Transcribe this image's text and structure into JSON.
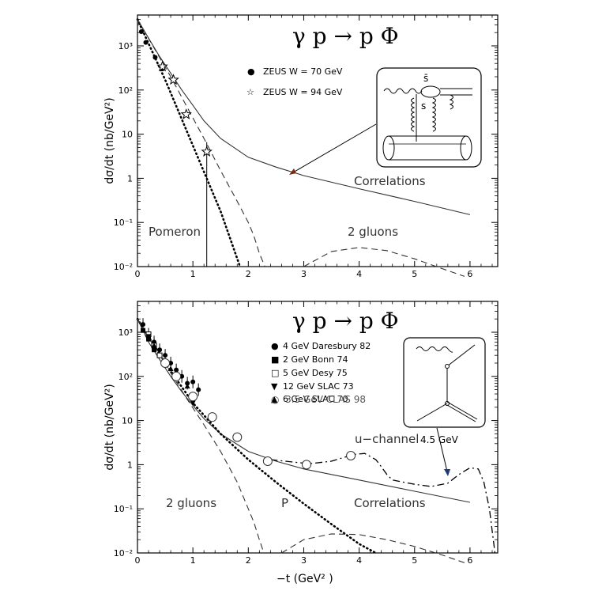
{
  "chart_data": [
    {
      "type": "line",
      "title": "γ p → p Φ",
      "xlabel": "",
      "ylabel": "dσ/dt (nb/GeV²)",
      "xlim": [
        0,
        6.5
      ],
      "ylim": [
        0.01,
        5000
      ],
      "yscale": "log",
      "xticks": [
        "0",
        "1",
        "2",
        "3",
        "4",
        "5",
        "6"
      ],
      "yticks": [
        "10⁻²",
        "10⁻¹",
        "1",
        "10",
        "10²",
        "10³"
      ],
      "series": [
        {
          "name": "Correlations",
          "style": "solid",
          "x": [
            0,
            0.2,
            0.4,
            0.6,
            0.8,
            1.0,
            1.2,
            1.5,
            2.0,
            2.5,
            3.0,
            4.0,
            5.0,
            6.0
          ],
          "y": [
            4000,
            1500,
            570,
            240,
            100,
            45,
            20,
            8,
            3.0,
            1.8,
            1.15,
            0.58,
            0.3,
            0.15
          ]
        },
        {
          "name": "Pomeron",
          "style": "dotted",
          "x": [
            0,
            0.5,
            1.0,
            1.5,
            1.85
          ],
          "y": [
            4000,
            170,
            5.5,
            0.18,
            0.01
          ]
        },
        {
          "name": "2 gluons",
          "style": "dashed",
          "x": [
            0,
            0.3,
            0.6,
            0.9,
            1.2,
            1.5,
            1.8,
            2.0,
            2.1,
            2.2,
            2.3
          ],
          "y": [
            4000,
            900,
            200,
            40,
            8,
            1.5,
            0.3,
            0.1,
            0.05,
            0.02,
            0.01
          ]
        },
        {
          "name": "2 gluons",
          "style": "dashed",
          "x": [
            3.0,
            3.5,
            4.0,
            4.5,
            5.0,
            5.5,
            5.9
          ],
          "y": [
            0.01,
            0.022,
            0.027,
            0.023,
            0.015,
            0.009,
            0.006
          ]
        },
        {
          "name": "ZEUS W = 70 GeV",
          "style": "points-filled-circle",
          "x": [
            0.07,
            0.15,
            0.32,
            0.45
          ],
          "y": [
            2100,
            1200,
            550,
            300
          ]
        },
        {
          "name": "ZEUS W = 94 GeV",
          "style": "points-open-star",
          "x": [
            0.45,
            0.65,
            0.88,
            1.25
          ],
          "y": [
            340,
            170,
            28,
            4
          ]
        }
      ],
      "annotations": [
        "Pomeron",
        "2 gluons",
        "Correlations"
      ],
      "legend": [
        {
          "marker": "●",
          "label": "ZEUS   W = 70 GeV"
        },
        {
          "marker": "☆",
          "label": "ZEUS   W = 94 GeV"
        }
      ],
      "inset_labels": {
        "sbar": "s̄",
        "s": "s"
      }
    },
    {
      "type": "line",
      "title": "γ p → p Φ",
      "xlabel": "−t   (GeV² )",
      "ylabel": "dσ/dt (nb/GeV²)",
      "xlim": [
        0,
        6.5
      ],
      "ylim": [
        0.01,
        5000
      ],
      "yscale": "log",
      "xticks": [
        "0",
        "1",
        "2",
        "3",
        "4",
        "5",
        "6"
      ],
      "yticks": [
        "10⁻²",
        "10⁻¹",
        "1",
        "10",
        "10²",
        "10³"
      ],
      "series": [
        {
          "name": "Correlations",
          "style": "solid",
          "x": [
            0,
            0.2,
            0.4,
            0.6,
            0.8,
            1.0,
            1.2,
            1.5,
            2.0,
            2.5,
            3.0,
            4.0,
            5.0,
            6.0
          ],
          "y": [
            2000,
            600,
            240,
            100,
            45,
            22,
            11,
            5,
            2.0,
            1.2,
            0.8,
            0.45,
            0.25,
            0.14
          ]
        },
        {
          "name": "P",
          "style": "dotted",
          "x": [
            0,
            0.5,
            1.0,
            1.5,
            2.0,
            2.5,
            3.0,
            3.5,
            4.0,
            4.3
          ],
          "y": [
            2000,
            200,
            25,
            5,
            1.3,
            0.4,
            0.13,
            0.045,
            0.016,
            0.01
          ]
        },
        {
          "name": "2 gluons",
          "style": "dashed",
          "x": [
            0,
            0.3,
            0.6,
            0.9,
            1.2,
            1.5,
            1.8,
            2.0,
            2.1,
            2.2,
            2.28
          ],
          "y": [
            2000,
            500,
            120,
            30,
            8,
            2,
            0.4,
            0.1,
            0.05,
            0.02,
            0.01
          ]
        },
        {
          "name": "2 gluons",
          "style": "dashed",
          "x": [
            2.6,
            3.0,
            3.5,
            4.0,
            4.5,
            5.0,
            5.5,
            5.9
          ],
          "y": [
            0.01,
            0.02,
            0.027,
            0.026,
            0.02,
            0.014,
            0.009,
            0.006
          ]
        },
        {
          "name": "u-channel",
          "style": "dash-dot",
          "x": [
            2.4,
            2.8,
            3.1,
            3.5,
            3.9,
            4.1,
            4.3,
            4.4,
            4.5,
            4.6,
            5.0,
            5.3,
            5.6,
            5.8,
            6.0,
            6.15,
            6.25,
            6.35,
            6.45
          ],
          "y": [
            1.3,
            1.15,
            1.05,
            1.2,
            1.7,
            1.8,
            1.3,
            0.9,
            0.6,
            0.45,
            0.36,
            0.32,
            0.38,
            0.6,
            0.85,
            0.8,
            0.4,
            0.1,
            0.01
          ]
        },
        {
          "name": "4 GeV Daresbury 82",
          "style": "points-filled-circle",
          "x": [
            0.1,
            0.2,
            0.3,
            0.4,
            0.5,
            0.6,
            0.7,
            0.8,
            0.9,
            1.0,
            1.1
          ],
          "y": [
            1500,
            900,
            600,
            400,
            300,
            200,
            140,
            100,
            70,
            75,
            50
          ]
        },
        {
          "name": "2 GeV Bonn 74",
          "style": "points-filled-square",
          "x": [
            0.1,
            0.2,
            0.3
          ],
          "y": [
            1100,
            700,
            400
          ]
        },
        {
          "name": "5 GeV Desy 75",
          "style": "points-open-square",
          "x": [
            0.2,
            0.3,
            0.4
          ],
          "y": [
            900,
            500,
            300
          ]
        },
        {
          "name": "12 GeV SLAC 73",
          "style": "points-filled-tri-down",
          "x": [
            0.2,
            0.5,
            1.0
          ],
          "y": [
            800,
            200,
            25
          ]
        },
        {
          "name": "6 GeV SLAC 70",
          "style": "points-filled-tri-up",
          "x": [
            0.3,
            0.6,
            0.9
          ],
          "y": [
            500,
            150,
            60
          ]
        },
        {
          "name": "3.5 GeV CLAS 98",
          "style": "points-open-circle",
          "x": [
            0.5,
            0.7,
            1.0,
            1.35,
            1.8,
            2.35,
            3.05,
            3.85
          ],
          "y": [
            200,
            100,
            35,
            12,
            4.2,
            1.2,
            1.0,
            1.6
          ]
        }
      ],
      "annotations": [
        "2 gluons",
        "P",
        "Correlations",
        "u−channel",
        "4.5 GeV"
      ],
      "legend": [
        {
          "marker": "●",
          "label": "4  GeV  Daresbury 82"
        },
        {
          "marker": "■",
          "label": "2  GeV   Bonn 74"
        },
        {
          "marker": "□",
          "label": "5  GeV   Desy 75"
        },
        {
          "marker": "▼",
          "label": "12 GeV   SLAC 73"
        },
        {
          "marker": "▲",
          "label": "6  GeV   SLAC 70"
        },
        {
          "marker": "○",
          "label": "3.5 GeV  CLAS 98"
        }
      ]
    }
  ]
}
